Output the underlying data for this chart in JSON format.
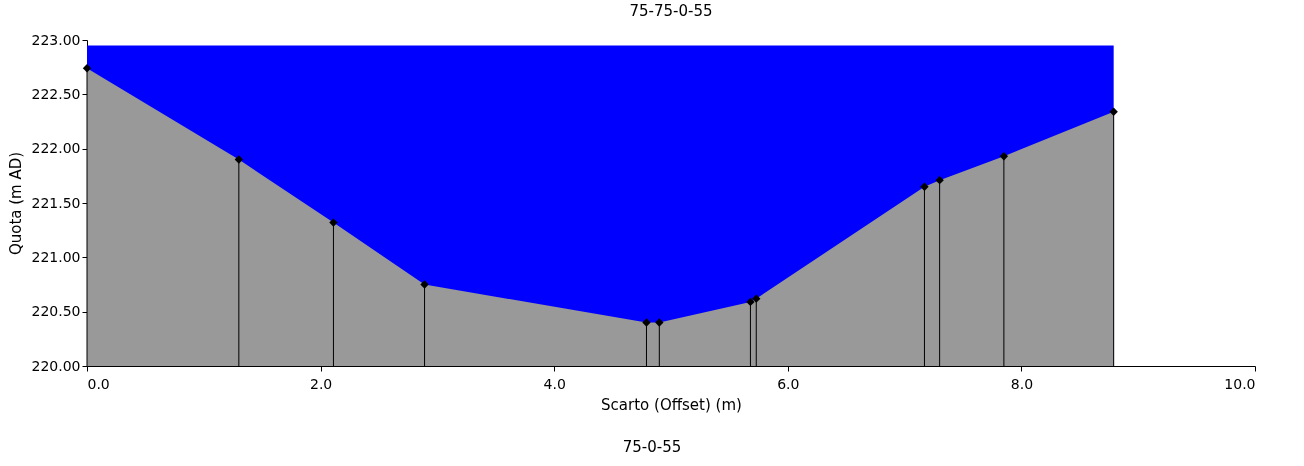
{
  "chart_data": {
    "type": "area",
    "title": "75-75-0-55",
    "xlabel": "Scarto (Offset) (m)",
    "ylabel": "Quota (m AD)",
    "annotations": [
      "75-0-55"
    ],
    "xlim": [
      0,
      10
    ],
    "xticks": [
      {
        "value": 0,
        "label": "0.0"
      },
      {
        "value": 2,
        "label": "2.0"
      },
      {
        "value": 4,
        "label": "4.0"
      },
      {
        "value": 6,
        "label": "6.0"
      },
      {
        "value": 8,
        "label": "8.0"
      },
      {
        "value": 10,
        "label": "10.0"
      }
    ],
    "ylim": [
      220,
      223
    ],
    "yticks": [
      {
        "value": 220,
        "label": "220.00"
      },
      {
        "value": 220.5,
        "label": "220.50"
      },
      {
        "value": 221,
        "label": "221.00"
      },
      {
        "value": 221.5,
        "label": "221.50"
      },
      {
        "value": 222,
        "label": "222.00"
      },
      {
        "value": 222.5,
        "label": "222.50"
      },
      {
        "value": 223,
        "label": "223.00"
      }
    ],
    "series": [
      {
        "type": "area",
        "color": "#0000ff",
        "x": [
          0,
          8.79
        ],
        "values": [
          222.95,
          222.95
        ]
      },
      {
        "type": "area",
        "color": "#999999",
        "x": [
          0,
          1.3,
          2.11,
          2.89,
          4.79,
          4.9,
          5.68,
          5.73,
          7.17,
          7.3,
          7.85,
          8.79
        ],
        "values": [
          222.74,
          221.9,
          221.32,
          220.75,
          220.4,
          220.4,
          220.59,
          220.62,
          221.65,
          221.71,
          221.93,
          222.34
        ]
      },
      {
        "type": "lollipop",
        "color": "#000000",
        "marker": "diamond",
        "x": [
          0,
          1.3,
          2.11,
          2.89,
          4.79,
          4.9,
          5.68,
          5.73,
          7.17,
          7.3,
          7.85,
          8.79
        ],
        "values": [
          222.74,
          221.9,
          221.32,
          220.75,
          220.4,
          220.4,
          220.59,
          220.62,
          221.65,
          221.71,
          221.93,
          222.34
        ]
      }
    ]
  }
}
